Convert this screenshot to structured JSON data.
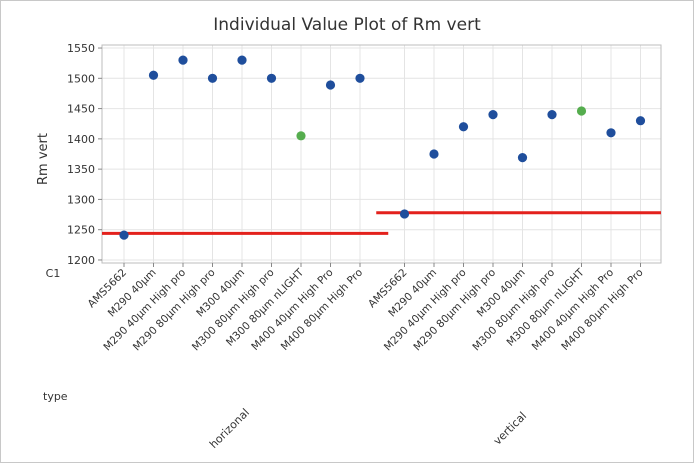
{
  "chart_data": {
    "type": "scatter",
    "title": "Individual Value Plot of Rm vert",
    "ylabel": "Rm vert",
    "row_labels": {
      "category_row": "C1",
      "group_row": "type"
    },
    "ylim": [
      1195,
      1555
    ],
    "yticks": [
      1200,
      1250,
      1300,
      1350,
      1400,
      1450,
      1500,
      1550
    ],
    "grid": true,
    "colors": {
      "point": "#1f4e9c",
      "highlight_point": "#55ad4e",
      "reference_line": "#e3211c"
    },
    "groups": [
      {
        "name": "horizonal",
        "reference_value": 1244,
        "categories": [
          "AMS5662",
          "M290 40µm",
          "M290 40µm High pro",
          "M290 80µm High pro",
          "M300 40µm",
          "M300 80µm High pro",
          "M300 80µm nLIGHT",
          "M400 40µm High Pro",
          "M400 80µm High Pro"
        ],
        "values": [
          1241,
          1505,
          1530,
          1500,
          1530,
          1500,
          1405,
          1489,
          1500
        ],
        "highlight": [
          false,
          false,
          false,
          false,
          false,
          false,
          true,
          false,
          false
        ]
      },
      {
        "name": "vertical",
        "reference_value": 1278,
        "categories": [
          "AMS5662",
          "M290 40µm",
          "M290 40µm High pro",
          "M290 80µm High pro",
          "M300 40µm",
          "M300 80µm High pro",
          "M300 80µm nLIGHT",
          "M400 40µm High Pro",
          "M400 80µm High Pro"
        ],
        "values": [
          1276,
          1375,
          1420,
          1440,
          1369,
          1440,
          1446,
          1410,
          1430
        ],
        "highlight": [
          false,
          false,
          false,
          false,
          false,
          false,
          true,
          false,
          false
        ]
      }
    ]
  }
}
